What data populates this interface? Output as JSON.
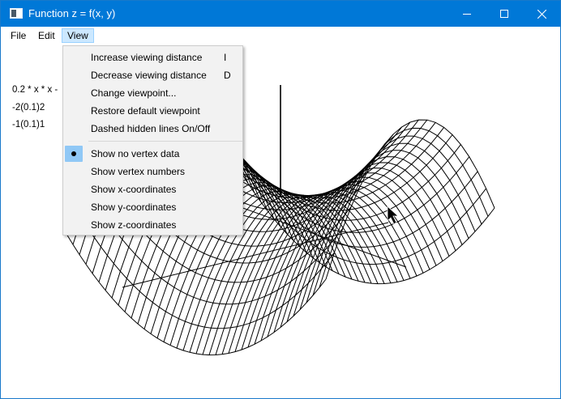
{
  "window": {
    "title": "Function z = f(x, y)",
    "icon": "window-app-icon",
    "controls": [
      "minimize-icon",
      "maximize-icon",
      "close-icon"
    ]
  },
  "menubar": {
    "file": "File",
    "edit": "Edit",
    "view": "View"
  },
  "view_menu": {
    "items": [
      {
        "label": "Increase viewing distance",
        "shortcut": "I"
      },
      {
        "label": "Decrease viewing distance",
        "shortcut": "D"
      },
      {
        "label": "Change viewpoint...",
        "shortcut": ""
      },
      {
        "label": "Restore default viewpoint",
        "shortcut": ""
      },
      {
        "label": "Dashed hidden lines On/Off",
        "shortcut": ""
      },
      {
        "label": "Show no vertex data",
        "shortcut": "",
        "checked": true
      },
      {
        "label": "Show vertex numbers",
        "shortcut": ""
      },
      {
        "label": "Show x-coordinates",
        "shortcut": ""
      },
      {
        "label": "Show y-coordinates",
        "shortcut": ""
      },
      {
        "label": "Show z-coordinates",
        "shortcut": ""
      }
    ]
  },
  "function_info": {
    "expression": "0.2 * x * x -",
    "x_range": "-2(0.1)2",
    "y_range": "-1(0.1)1"
  },
  "colors": {
    "titlebar": "#0078d7",
    "menu_highlight": "#cce8ff",
    "checked_highlight": "#90c8f6",
    "mesh_line": "#000000"
  }
}
